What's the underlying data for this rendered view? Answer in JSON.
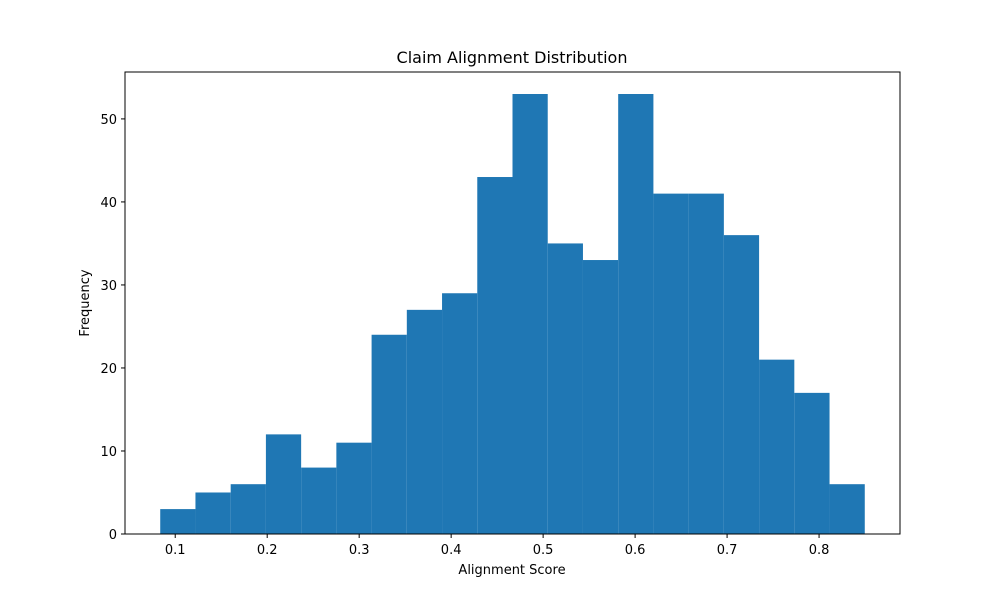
{
  "chart_data": {
    "type": "histogram",
    "title": "Claim Alignment Distribution",
    "x_label": "Alignment Score",
    "y_label": "Frequency",
    "bins": [
      0.0837,
      0.122,
      0.1603,
      0.1986,
      0.2369,
      0.2752,
      0.3135,
      0.3518,
      0.3901,
      0.4284,
      0.4667,
      0.505,
      0.5433,
      0.5816,
      0.6199,
      0.6582,
      0.6965,
      0.7348,
      0.7731,
      0.8114,
      0.8497
    ],
    "values": [
      3,
      5,
      6,
      12,
      8,
      11,
      24,
      27,
      29,
      43,
      53,
      35,
      33,
      53,
      41,
      41,
      36,
      21,
      17,
      6
    ],
    "color": "#1f77b4",
    "xlim": [
      0.0454,
      0.888
    ],
    "xticks": [
      0.1,
      0.2,
      0.3,
      0.4,
      0.5,
      0.6,
      0.7,
      0.8
    ],
    "ylim": [
      0,
      55.65
    ],
    "yticks": [
      0,
      10,
      20,
      30,
      40,
      50
    ]
  }
}
